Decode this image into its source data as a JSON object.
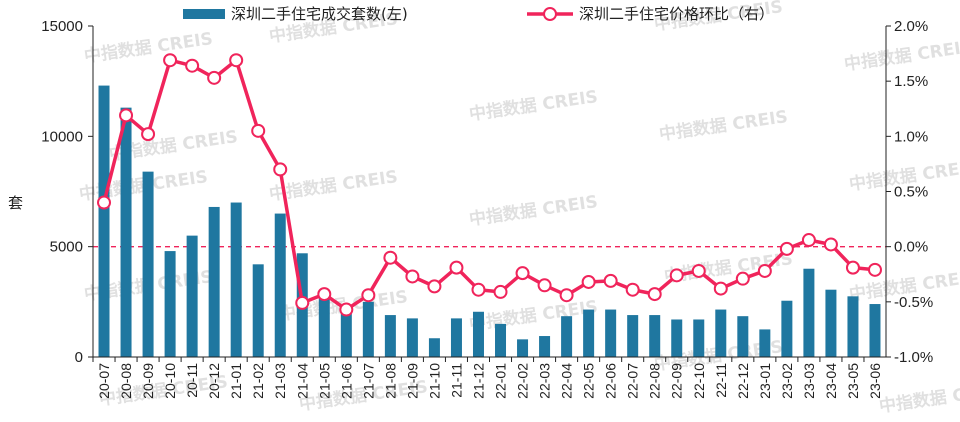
{
  "chart_data": {
    "type": "bar",
    "watermark": "中指数据 CREIS",
    "ylabel": "套",
    "left_axis": {
      "min": 0,
      "max": 15000,
      "ticks": [
        "0",
        "5000",
        "10000",
        "15000"
      ],
      "tick_values": [
        0,
        5000,
        10000,
        15000
      ]
    },
    "right_axis": {
      "min": -1.0,
      "max": 2.0,
      "ticks": [
        "-1.0%",
        "-0.5%",
        "0.0%",
        "0.5%",
        "1.0%",
        "1.5%",
        "2.0%"
      ],
      "tick_values": [
        -1.0,
        -0.5,
        0.0,
        0.5,
        1.0,
        1.5,
        2.0
      ]
    },
    "legend_position": "top",
    "categories": [
      "20-07",
      "20-08",
      "20-09",
      "20-10",
      "20-11",
      "20-12",
      "21-01",
      "21-02",
      "21-03",
      "21-04",
      "21-05",
      "21-06",
      "21-07",
      "21-08",
      "21-09",
      "21-10",
      "21-11",
      "21-12",
      "22-01",
      "22-02",
      "22-03",
      "22-04",
      "22-05",
      "22-06",
      "22-07",
      "22-08",
      "22-09",
      "22-10",
      "22-11",
      "22-12",
      "23-01",
      "23-02",
      "23-03",
      "23-04",
      "23-05",
      "23-06"
    ],
    "series": [
      {
        "name": "深圳二手住宅成交套数(左)",
        "kind": "bar",
        "axis": "left",
        "color": "#1f77a0",
        "values": [
          12300,
          11300,
          8400,
          4800,
          5500,
          6800,
          7000,
          4200,
          6500,
          4700,
          2700,
          2200,
          2500,
          1900,
          1750,
          850,
          1750,
          2050,
          1500,
          800,
          950,
          1850,
          2150,
          2150,
          1900,
          1900,
          1700,
          1700,
          2150,
          1850,
          1250,
          2550,
          4000,
          3050,
          2750,
          2400
        ]
      },
      {
        "name": "深圳二手住宅价格环比（右）",
        "kind": "line",
        "axis": "right",
        "color": "#f0245b",
        "values": [
          0.4,
          1.19,
          1.02,
          1.69,
          1.64,
          1.53,
          1.69,
          1.05,
          0.7,
          -0.51,
          -0.43,
          -0.57,
          -0.44,
          -0.1,
          -0.27,
          -0.36,
          -0.19,
          -0.39,
          -0.41,
          -0.24,
          -0.35,
          -0.44,
          -0.32,
          -0.31,
          -0.39,
          -0.43,
          -0.26,
          -0.22,
          -0.38,
          -0.29,
          -0.22,
          -0.02,
          0.06,
          0.02,
          -0.19,
          -0.21
        ]
      }
    ],
    "zero_reference_line": {
      "axis": "right",
      "value": 0.0,
      "style": "dashed",
      "color": "#f0245b"
    }
  }
}
